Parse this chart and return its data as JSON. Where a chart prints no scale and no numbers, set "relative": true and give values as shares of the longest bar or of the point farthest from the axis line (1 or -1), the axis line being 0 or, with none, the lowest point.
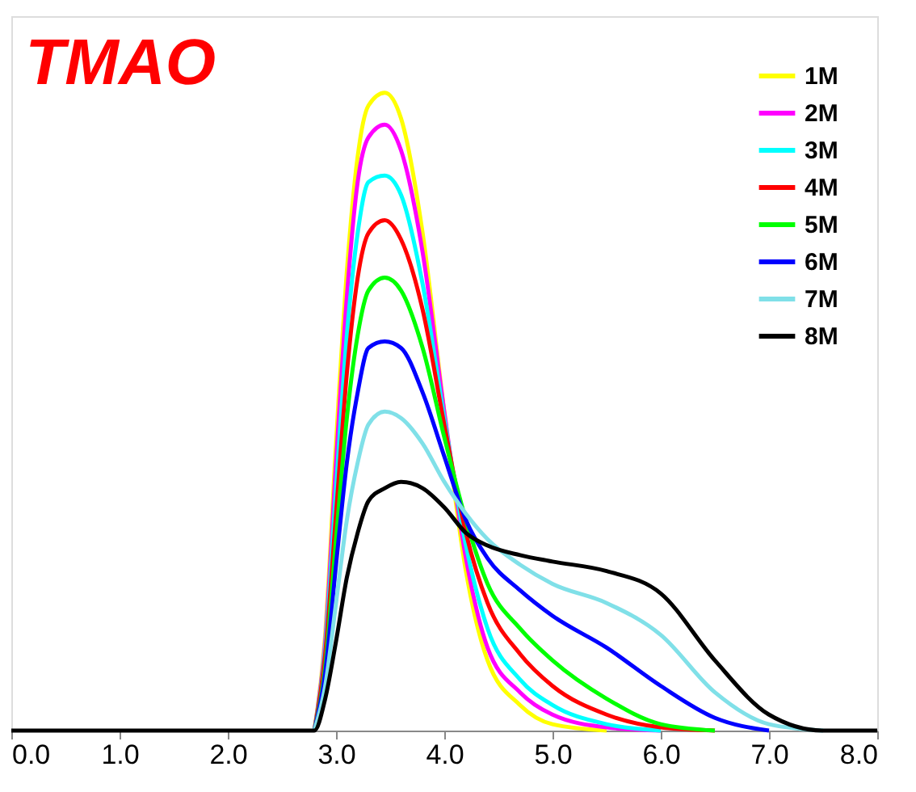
{
  "chart_data": {
    "type": "line",
    "title": "TMAO",
    "relative": true,
    "legend": "top right",
    "grid": false,
    "marker": "none",
    "line_style": "solid",
    "x": [
      0.0,
      2.7,
      2.8,
      2.9,
      3.0,
      3.1,
      3.2,
      3.3,
      3.45,
      3.6,
      3.8,
      4.0,
      4.2,
      4.4,
      4.7,
      5.0,
      5.5,
      6.0,
      6.5,
      7.0,
      7.5,
      8.0
    ],
    "xlim": [
      0,
      8
    ],
    "xticks": [
      {
        "value": 0,
        "label": "0.0"
      },
      {
        "value": 1,
        "label": "1.0"
      },
      {
        "value": 2,
        "label": "2.0"
      },
      {
        "value": 3,
        "label": "3.0"
      },
      {
        "value": 4,
        "label": "4.0"
      },
      {
        "value": 5,
        "label": "5.0"
      },
      {
        "value": 6,
        "label": "6.0"
      },
      {
        "value": 7,
        "label": "7.0"
      },
      {
        "value": 8,
        "label": "8.0"
      }
    ],
    "series": [
      {
        "name": "1M",
        "color": "#ffff00",
        "values": [
          null,
          null,
          0,
          0.15,
          0.45,
          0.72,
          0.9,
          0.98,
          1.0,
          0.96,
          0.78,
          0.5,
          0.25,
          0.11,
          0.04,
          0.01,
          0,
          null,
          null,
          null,
          null,
          null
        ]
      },
      {
        "name": "2M",
        "color": "#ff00ff",
        "values": [
          null,
          null,
          0,
          0.14,
          0.42,
          0.68,
          0.86,
          0.93,
          0.95,
          0.91,
          0.75,
          0.5,
          0.27,
          0.13,
          0.06,
          0.025,
          0.005,
          0,
          null,
          null,
          null,
          null
        ]
      },
      {
        "name": "3M",
        "color": "#00ffff",
        "values": [
          null,
          null,
          0,
          0.13,
          0.38,
          0.62,
          0.78,
          0.86,
          0.87,
          0.84,
          0.7,
          0.49,
          0.29,
          0.16,
          0.08,
          0.04,
          0.01,
          0,
          null,
          null,
          null,
          null
        ]
      },
      {
        "name": "4M",
        "color": "#ff0000",
        "values": [
          null,
          null,
          0,
          0.12,
          0.34,
          0.56,
          0.71,
          0.78,
          0.8,
          0.77,
          0.66,
          0.48,
          0.31,
          0.2,
          0.12,
          0.07,
          0.025,
          0.005,
          0,
          null,
          null,
          null
        ]
      },
      {
        "name": "5M",
        "color": "#00ff00",
        "values": [
          null,
          null,
          0,
          0.1,
          0.3,
          0.49,
          0.62,
          0.69,
          0.71,
          0.69,
          0.6,
          0.46,
          0.33,
          0.23,
          0.16,
          0.11,
          0.05,
          0.01,
          0,
          null,
          null,
          null
        ]
      },
      {
        "name": "6M",
        "color": "#0000ff",
        "values": [
          null,
          null,
          0,
          0.09,
          0.26,
          0.42,
          0.53,
          0.6,
          0.61,
          0.6,
          0.53,
          0.43,
          0.33,
          0.27,
          0.22,
          0.18,
          0.13,
          0.07,
          0.02,
          0,
          null,
          null
        ]
      },
      {
        "name": "7M",
        "color": "#80e0e8",
        "values": [
          null,
          null,
          0,
          0.07,
          0.2,
          0.33,
          0.42,
          0.48,
          0.5,
          0.49,
          0.45,
          0.39,
          0.34,
          0.3,
          0.26,
          0.23,
          0.2,
          0.15,
          0.06,
          0.01,
          0,
          null
        ]
      },
      {
        "name": "8M",
        "color": "#000000",
        "values": [
          0,
          0,
          0,
          0.05,
          0.14,
          0.24,
          0.31,
          0.36,
          0.38,
          0.39,
          0.38,
          0.35,
          0.31,
          0.29,
          0.275,
          0.265,
          0.25,
          0.215,
          0.11,
          0.025,
          0,
          0
        ]
      }
    ]
  }
}
